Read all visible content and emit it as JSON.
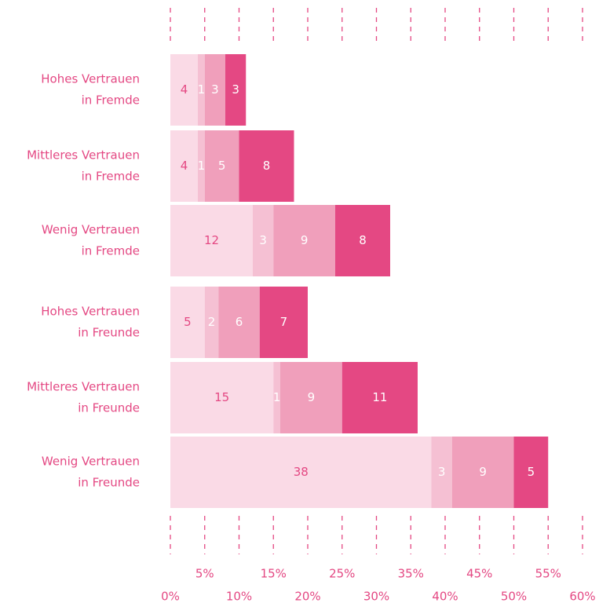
{
  "chart_data": {
    "type": "bar",
    "orientation": "horizontal",
    "stacked": true,
    "categories": [
      [
        "Hohes Vertrauen",
        "in Fremde"
      ],
      [
        "Mittleres Vertrauen",
        "in Fremde"
      ],
      [
        "Wenig Vertrauen",
        "in Fremde"
      ],
      [
        "Hohes Vertrauen",
        "in Freunde"
      ],
      [
        "Mittleres Vertrauen",
        "in Freunde"
      ],
      [
        "Wenig Vertrauen",
        "in Freunde"
      ]
    ],
    "series": [
      {
        "color": "#fadae6",
        "label_color": "#e44883",
        "values": [
          4,
          4,
          12,
          5,
          15,
          38
        ]
      },
      {
        "color": "#f5c0d3",
        "label_color": "#ffffff",
        "values": [
          1,
          1,
          3,
          2,
          1,
          3
        ]
      },
      {
        "color": "#f09fbb",
        "label_color": "#ffffff",
        "values": [
          3,
          5,
          9,
          6,
          9,
          9
        ]
      },
      {
        "color": "#e44883",
        "label_color": "#ffffff",
        "values": [
          3,
          8,
          8,
          7,
          11,
          5
        ]
      }
    ],
    "xlim": [
      0,
      60
    ],
    "xticks": [
      {
        "value": 0,
        "label": "0%"
      },
      {
        "value": 5,
        "label": "5%"
      },
      {
        "value": 10,
        "label": "10%"
      },
      {
        "value": 15,
        "label": "15%"
      },
      {
        "value": 20,
        "label": "20%"
      },
      {
        "value": 25,
        "label": "25%"
      },
      {
        "value": 30,
        "label": "30%"
      },
      {
        "value": 35,
        "label": "35%"
      },
      {
        "value": 40,
        "label": "40%"
      },
      {
        "value": 45,
        "label": "45%"
      },
      {
        "value": 50,
        "label": "50%"
      },
      {
        "value": 55,
        "label": "55%"
      },
      {
        "value": 60,
        "label": "60%"
      }
    ]
  }
}
